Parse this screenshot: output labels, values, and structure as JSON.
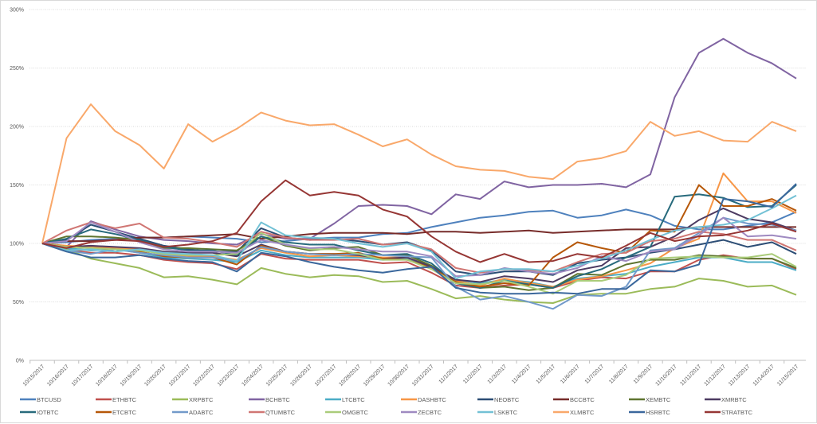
{
  "chart_data": {
    "type": "line",
    "title": "",
    "xlabel": "",
    "ylabel": "",
    "ylim": [
      0,
      300
    ],
    "y_ticks": [
      "0%",
      "50%",
      "100%",
      "150%",
      "200%",
      "250%",
      "300%"
    ],
    "y_tick_values": [
      0,
      50,
      100,
      150,
      200,
      250,
      300
    ],
    "grid": "horizontal-dotted",
    "legend_position": "bottom",
    "x": [
      "10/15/2017",
      "10/16/2017",
      "10/17/2017",
      "10/18/2017",
      "10/19/2017",
      "10/20/2017",
      "10/21/2017",
      "10/22/2017",
      "10/23/2017",
      "10/24/2017",
      "10/25/2017",
      "10/26/2017",
      "10/27/2017",
      "10/28/2017",
      "10/29/2017",
      "10/30/2017",
      "10/31/2017",
      "11/1/2017",
      "11/2/2017",
      "11/3/2017",
      "11/4/2017",
      "11/5/2017",
      "11/6/2017",
      "11/7/2017",
      "11/8/2017",
      "11/9/2017",
      "11/10/2017",
      "11/11/2017",
      "11/12/2017",
      "11/13/2017",
      "11/14/2017",
      "11/15/2017"
    ],
    "series": [
      {
        "name": "BTCUSD",
        "color": "#4e81bd",
        "values": [
          100,
          101,
          103,
          104,
          105,
          105,
          106,
          105,
          104,
          101,
          102,
          104,
          105,
          105,
          108,
          109,
          114,
          118,
          122,
          124,
          127,
          128,
          122,
          124,
          129,
          124,
          115,
          112,
          112,
          115,
          118,
          127
        ]
      },
      {
        "name": "ETHBTC",
        "color": "#c0504d",
        "values": [
          100,
          95,
          92,
          92,
          90,
          86,
          84,
          83,
          78,
          91,
          87,
          86,
          86,
          86,
          83,
          84,
          75,
          64,
          62,
          64,
          65,
          62,
          68,
          71,
          70,
          76,
          76,
          86,
          90,
          87,
          87,
          78
        ]
      },
      {
        "name": "XRPBTC",
        "color": "#9bbb59",
        "values": [
          100,
          95,
          87,
          83,
          79,
          71,
          72,
          69,
          65,
          79,
          74,
          71,
          73,
          72,
          67,
          68,
          61,
          53,
          55,
          52,
          50,
          49,
          56,
          57,
          57,
          61,
          63,
          70,
          68,
          63,
          64,
          56
        ]
      },
      {
        "name": "BCHBTC",
        "color": "#8064a2",
        "values": [
          100,
          97,
          119,
          112,
          106,
          103,
          102,
          100,
          99,
          108,
          104,
          104,
          117,
          132,
          133,
          132,
          125,
          142,
          138,
          153,
          148,
          150,
          150,
          151,
          148,
          159,
          225,
          263,
          275,
          263,
          254,
          241
        ]
      },
      {
        "name": "LTCBTC",
        "color": "#4bacc6",
        "values": [
          100,
          96,
          94,
          95,
          92,
          88,
          87,
          86,
          84,
          94,
          90,
          88,
          88,
          88,
          86,
          87,
          80,
          69,
          66,
          69,
          67,
          63,
          70,
          72,
          74,
          80,
          84,
          88,
          88,
          84,
          84,
          77
        ]
      },
      {
        "name": "DASHBTC",
        "color": "#f79646",
        "values": [
          100,
          98,
          97,
          96,
          95,
          91,
          89,
          89,
          86,
          96,
          92,
          89,
          90,
          89,
          88,
          88,
          80,
          68,
          64,
          70,
          66,
          63,
          69,
          72,
          77,
          83,
          96,
          104,
          160,
          136,
          136,
          126
        ]
      },
      {
        "name": "NEOBTC",
        "color": "#2c4d75",
        "values": [
          100,
          103,
          116,
          110,
          104,
          98,
          95,
          93,
          93,
          113,
          105,
          103,
          104,
          102,
          99,
          101,
          94,
          76,
          73,
          76,
          76,
          73,
          83,
          86,
          88,
          92,
          95,
          99,
          103,
          97,
          101,
          91
        ]
      },
      {
        "name": "BCCBTC",
        "color": "#772c2a",
        "values": [
          100,
          102,
          102,
          103,
          105,
          105,
          106,
          107,
          108,
          104,
          106,
          108,
          109,
          109,
          109,
          108,
          110,
          110,
          109,
          110,
          111,
          109,
          110,
          111,
          112,
          112,
          112,
          114,
          114,
          114,
          114,
          114
        ]
      },
      {
        "name": "XEMBTC",
        "color": "#5f7530",
        "values": [
          100,
          106,
          106,
          105,
          103,
          96,
          96,
          95,
          94,
          106,
          98,
          94,
          96,
          97,
          90,
          90,
          81,
          67,
          62,
          63,
          60,
          62,
          74,
          73,
          82,
          86,
          86,
          90,
          89,
          87,
          87,
          79
        ]
      },
      {
        "name": "XMRBTC",
        "color": "#4d3b62",
        "values": [
          100,
          97,
          98,
          97,
          96,
          93,
          92,
          92,
          89,
          99,
          93,
          91,
          91,
          90,
          87,
          88,
          80,
          69,
          67,
          72,
          70,
          67,
          77,
          81,
          96,
          97,
          106,
          120,
          130,
          121,
          118,
          111
        ]
      },
      {
        "name": "IOTBTC",
        "color": "#276a7c",
        "values": [
          100,
          104,
          112,
          108,
          103,
          97,
          94,
          94,
          90,
          106,
          101,
          99,
          99,
          94,
          90,
          91,
          83,
          66,
          62,
          68,
          65,
          62,
          72,
          78,
          88,
          97,
          140,
          142,
          139,
          131,
          132,
          150
        ]
      },
      {
        "name": "ETCBTC",
        "color": "#b65708",
        "values": [
          100,
          97,
          96,
          95,
          93,
          89,
          88,
          88,
          82,
          98,
          93,
          91,
          91,
          92,
          87,
          86,
          79,
          67,
          63,
          66,
          64,
          88,
          101,
          96,
          92,
          111,
          110,
          150,
          132,
          132,
          138,
          128
        ]
      },
      {
        "name": "ADABTC",
        "color": "#729aca",
        "values": [
          100,
          94,
          91,
          95,
          92,
          90,
          88,
          88,
          85,
          97,
          93,
          91,
          90,
          91,
          90,
          89,
          88,
          63,
          52,
          55,
          50,
          44,
          56,
          55,
          63,
          94,
          96,
          109,
          122,
          117,
          116,
          111
        ]
      },
      {
        "name": "QTUMBTC",
        "color": "#d07673",
        "values": [
          100,
          111,
          118,
          113,
          117,
          105,
          104,
          101,
          97,
          110,
          105,
          103,
          103,
          104,
          99,
          100,
          95,
          79,
          75,
          78,
          77,
          76,
          84,
          91,
          92,
          102,
          104,
          110,
          108,
          103,
          103,
          94
        ]
      },
      {
        "name": "OMGBTC",
        "color": "#aacc7a",
        "values": [
          100,
          97,
          96,
          95,
          94,
          91,
          90,
          90,
          91,
          109,
          99,
          95,
          95,
          91,
          86,
          86,
          78,
          66,
          65,
          68,
          63,
          57,
          68,
          68,
          73,
          87,
          88,
          89,
          88,
          88,
          91,
          80
        ]
      },
      {
        "name": "ZECBTC",
        "color": "#9f8ac1",
        "values": [
          100,
          102,
          118,
          110,
          101,
          95,
          93,
          93,
          92,
          103,
          99,
          96,
          97,
          95,
          93,
          93,
          89,
          72,
          73,
          79,
          76,
          74,
          79,
          89,
          85,
          93,
          95,
          107,
          122,
          106,
          107,
          104
        ]
      },
      {
        "name": "LSKBTC",
        "color": "#72c1d5",
        "values": [
          100,
          94,
          95,
          93,
          95,
          92,
          91,
          90,
          85,
          118,
          107,
          105,
          104,
          100,
          97,
          100,
          93,
          70,
          76,
          78,
          78,
          76,
          81,
          87,
          94,
          103,
          111,
          114,
          116,
          120,
          130,
          141
        ]
      },
      {
        "name": "XLMBTC",
        "color": "#f9a86a",
        "values": [
          100,
          190,
          219,
          196,
          184,
          164,
          202,
          187,
          198,
          212,
          205,
          201,
          202,
          193,
          183,
          189,
          176,
          166,
          163,
          162,
          157,
          155,
          170,
          173,
          179,
          204,
          192,
          196,
          188,
          187,
          204,
          196
        ]
      },
      {
        "name": "HSRBTC",
        "color": "#3a679c",
        "values": [
          100,
          93,
          88,
          88,
          90,
          87,
          85,
          84,
          76,
          92,
          89,
          84,
          80,
          77,
          75,
          78,
          80,
          62,
          58,
          57,
          57,
          58,
          57,
          61,
          61,
          77,
          76,
          82,
          138,
          136,
          131,
          151
        ]
      },
      {
        "name": "STRATBTC",
        "color": "#963634",
        "values": [
          100,
          96,
          101,
          103,
          102,
          97,
          99,
          102,
          109,
          136,
          154,
          141,
          144,
          141,
          129,
          123,
          106,
          93,
          84,
          91,
          84,
          85,
          91,
          88,
          98,
          109,
          102,
          106,
          107,
          111,
          117,
          110
        ]
      }
    ]
  }
}
